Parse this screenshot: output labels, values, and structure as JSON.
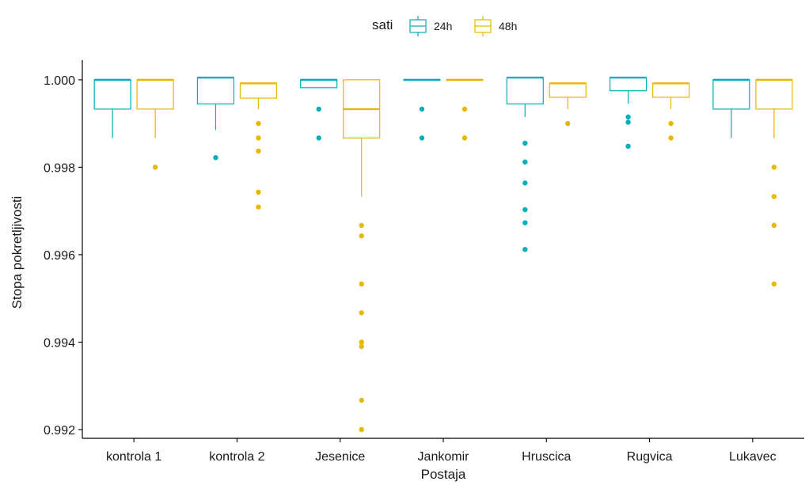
{
  "chart_data": {
    "type": "box",
    "title": "",
    "xlabel": "Postaja",
    "ylabel": "Stopa pokretljivosti",
    "ylim": [
      0.9918,
      1.00045
    ],
    "yticks": [
      "0.992",
      "0.994",
      "0.996",
      "0.998",
      "1.000"
    ],
    "grid": false,
    "legend": {
      "title": "sati",
      "position": "top",
      "entries": [
        "24h",
        "48h"
      ]
    },
    "categories": [
      "kontrola 1",
      "kontrola 2",
      "Jesenice",
      "Jankomir",
      "Hruscica",
      "Rugvica",
      "Lukavec"
    ],
    "series": [
      {
        "name": "24h",
        "color": "#00AFBB",
        "boxes": [
          {
            "min": 0.99867,
            "q1": 0.99933,
            "median": 1.0,
            "q3": 1.0,
            "max": 1.0,
            "outliers": []
          },
          {
            "min": 0.99885,
            "q1": 0.99945,
            "median": 1.00005,
            "q3": 1.00005,
            "max": 1.00005,
            "outliers": [
              0.99822
            ]
          },
          {
            "min": 0.99982,
            "q1": 0.99982,
            "median": 1.0,
            "q3": 1.0,
            "max": 1.0,
            "outliers": [
              0.99933,
              0.99867
            ]
          },
          {
            "min": 1.0,
            "q1": 1.0,
            "median": 1.0,
            "q3": 1.0,
            "max": 1.0,
            "outliers": [
              0.99933,
              0.99867
            ]
          },
          {
            "min": 0.99915,
            "q1": 0.99945,
            "median": 1.00005,
            "q3": 1.00005,
            "max": 1.00005,
            "outliers": [
              0.99855,
              0.99812,
              0.99764,
              0.99703,
              0.99673,
              0.99612
            ]
          },
          {
            "min": 0.99945,
            "q1": 0.99975,
            "median": 1.00005,
            "q3": 1.00005,
            "max": 1.00005,
            "outliers": [
              0.99915,
              0.99903,
              0.99848
            ]
          },
          {
            "min": 0.99867,
            "q1": 0.99933,
            "median": 1.0,
            "q3": 1.0,
            "max": 1.0,
            "outliers": []
          }
        ]
      },
      {
        "name": "48h",
        "color": "#E7B800",
        "boxes": [
          {
            "min": 0.99867,
            "q1": 0.99933,
            "median": 1.0,
            "q3": 1.0,
            "max": 1.0,
            "outliers": [
              0.998
            ]
          },
          {
            "min": 0.99933,
            "q1": 0.99958,
            "median": 0.99992,
            "q3": 0.99992,
            "max": 0.99992,
            "outliers": [
              0.999,
              0.99867,
              0.99837,
              0.99743,
              0.99709
            ]
          },
          {
            "min": 0.99733,
            "q1": 0.99867,
            "median": 0.99933,
            "q3": 1.0,
            "max": 1.0,
            "outliers": [
              0.99667,
              0.99643,
              0.99533,
              0.99467,
              0.994,
              0.9939,
              0.99267,
              0.992
            ]
          },
          {
            "min": 1.0,
            "q1": 1.0,
            "median": 1.0,
            "q3": 1.0,
            "max": 1.0,
            "outliers": [
              0.99933,
              0.99867
            ]
          },
          {
            "min": 0.99933,
            "q1": 0.9996,
            "median": 0.99992,
            "q3": 0.99992,
            "max": 0.99992,
            "outliers": [
              0.999
            ]
          },
          {
            "min": 0.99933,
            "q1": 0.9996,
            "median": 0.99992,
            "q3": 0.99992,
            "max": 0.99992,
            "outliers": [
              0.999,
              0.99867
            ]
          },
          {
            "min": 0.99867,
            "q1": 0.99933,
            "median": 1.0,
            "q3": 1.0,
            "max": 1.0,
            "outliers": [
              0.998,
              0.99733,
              0.99667,
              0.99533
            ]
          }
        ]
      }
    ]
  }
}
